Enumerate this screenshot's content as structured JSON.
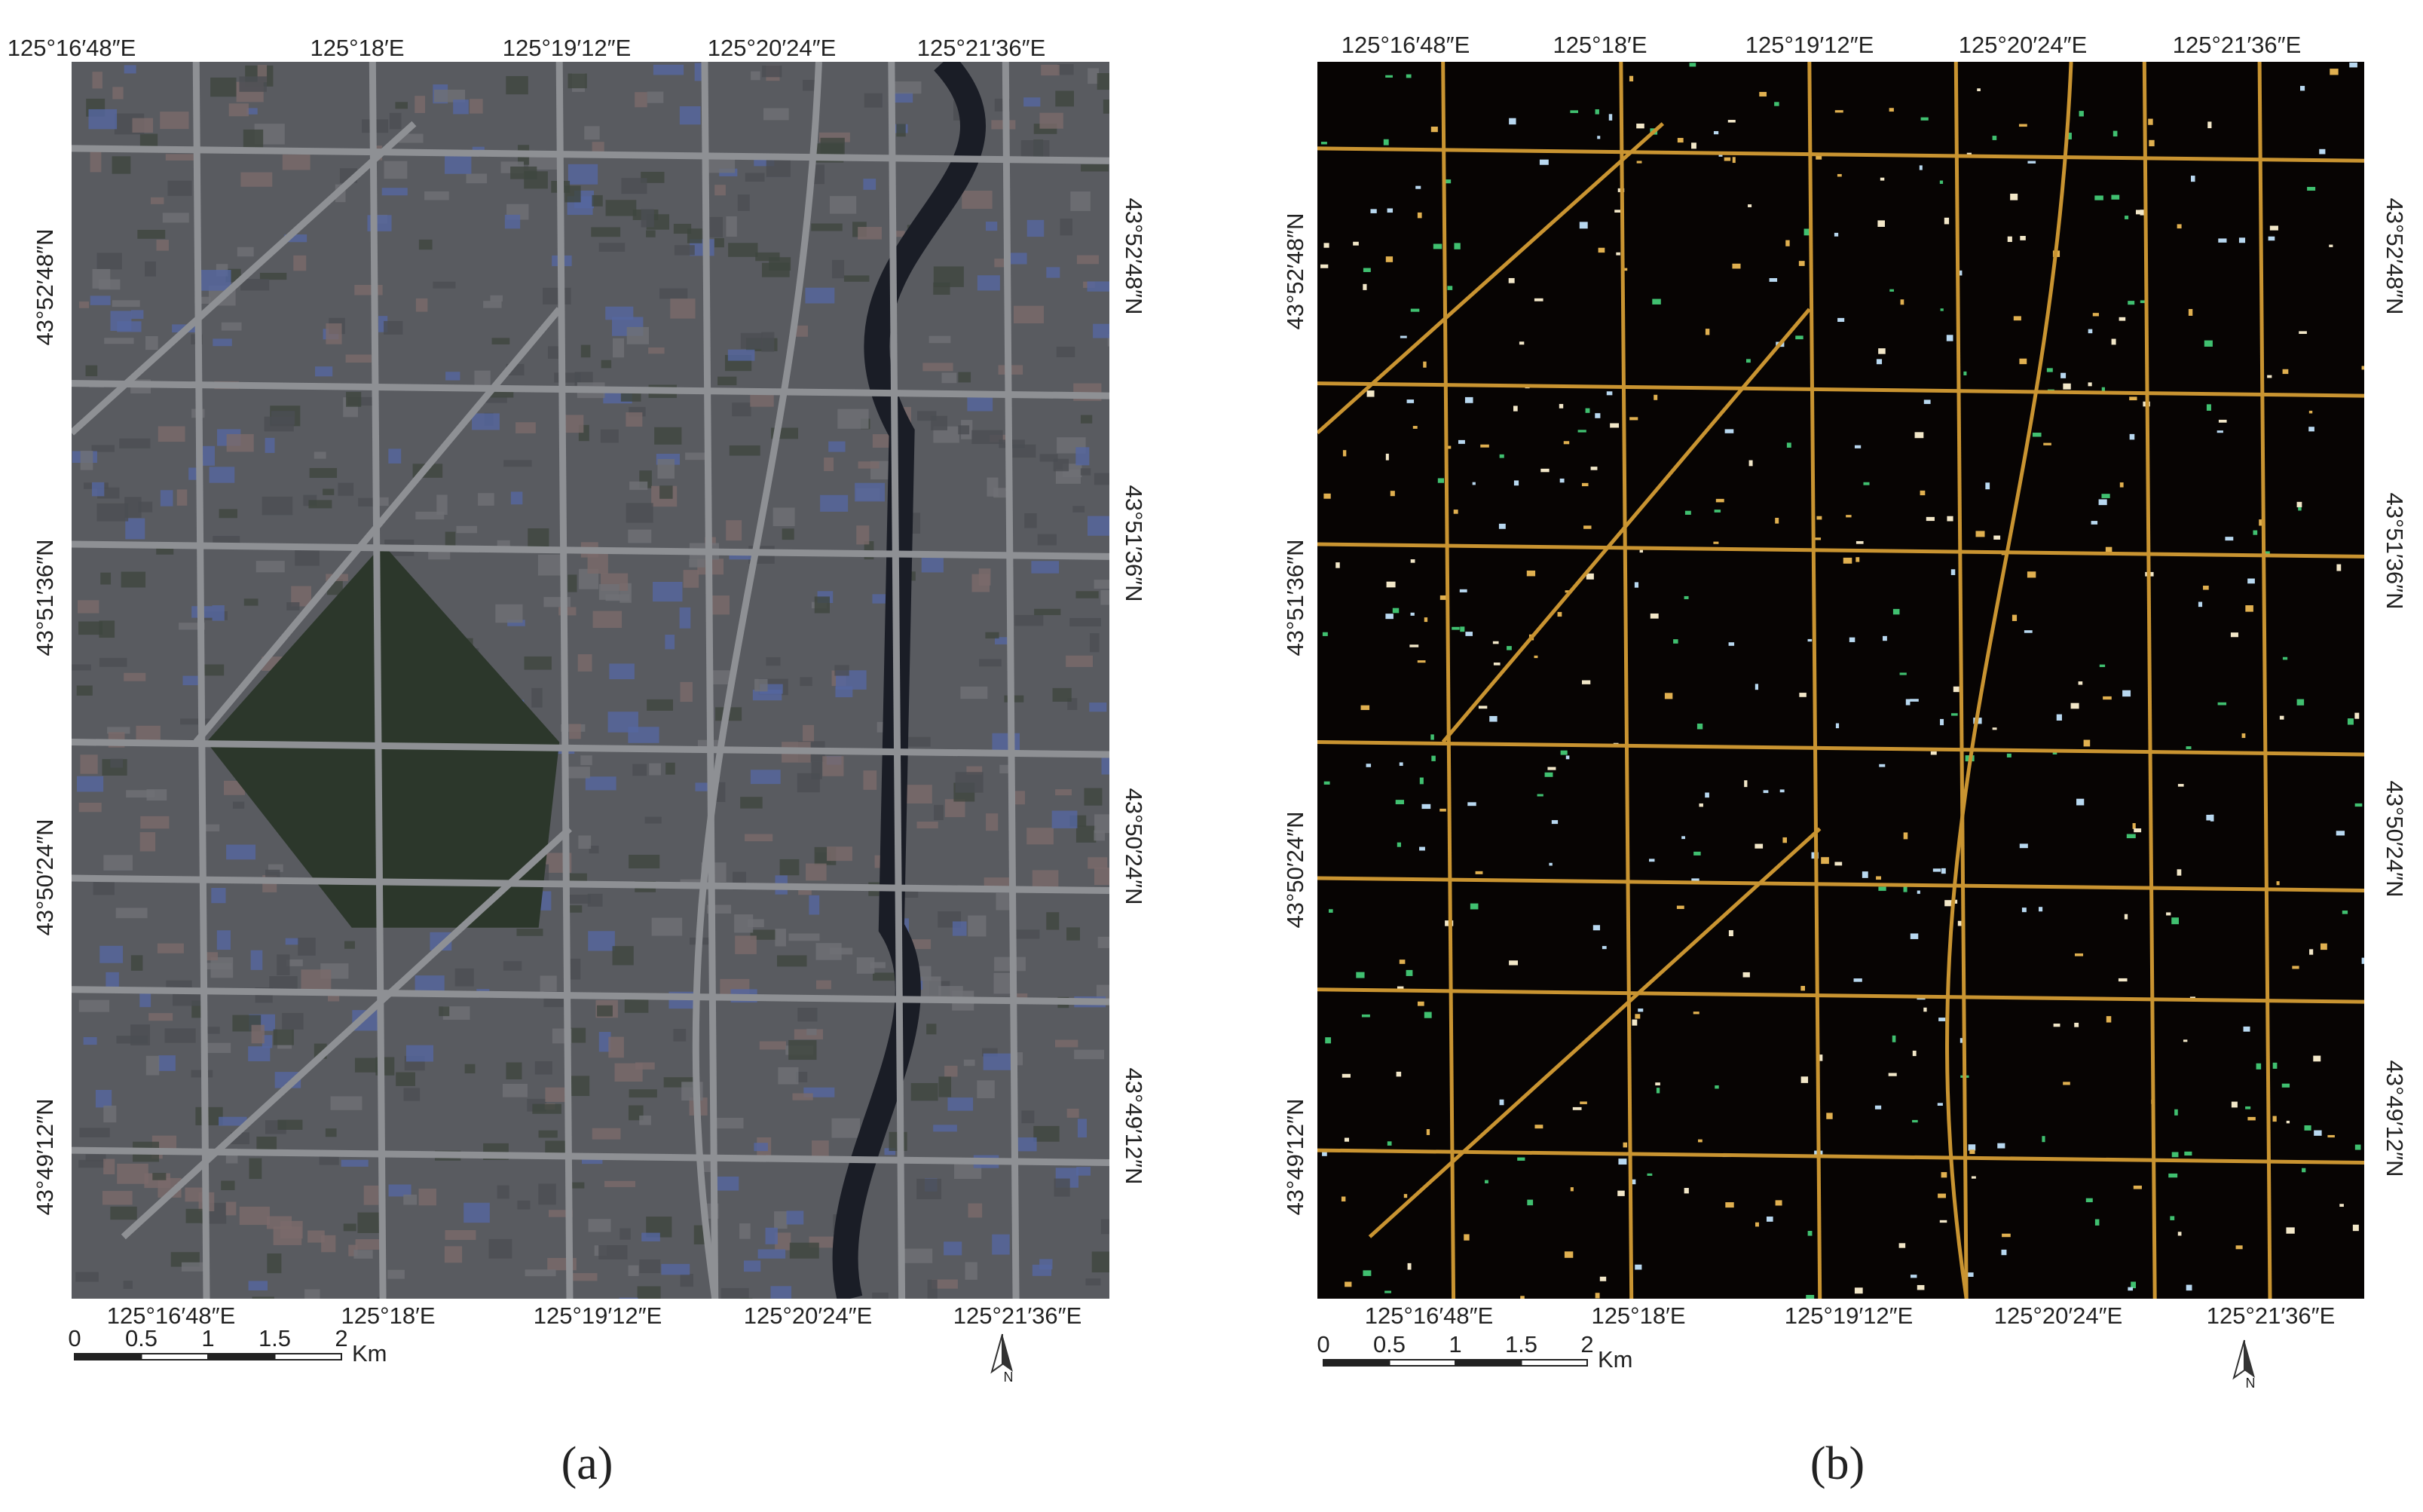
{
  "panels": [
    {
      "caption": "(a)",
      "top_labels": [
        "125°16′48″E",
        "125°18′E",
        "125°19′12″E",
        "125°20′24″E",
        "125°21′36″E"
      ],
      "bottom_labels": [
        "125°16′48″E",
        "125°18′E",
        "125°19′12″E",
        "125°20′24″E",
        "125°21′36″E"
      ],
      "left_labels": [
        "43°52′48″N",
        "43°51′36″N",
        "43°50′24″N",
        "43°49′12″N"
      ],
      "right_labels": [
        "43°52′48″N",
        "43°51′36″N",
        "43°50′24″N",
        "43°49′12″N"
      ],
      "scale_labels": [
        "0",
        "0.5",
        "1",
        "1.5",
        "2"
      ],
      "scale_unit": "Km",
      "north": "N"
    },
    {
      "caption": "(b)",
      "top_labels": [
        "125°16′48″E",
        "125°18′E",
        "125°19′12″E",
        "125°20′24″E",
        "125°21′36″E"
      ],
      "bottom_labels": [
        "125°16′48″E",
        "125°18′E",
        "125°19′12″E",
        "125°20′24″E",
        "125°21′36″E"
      ],
      "left_labels": [
        "43°52′48″N",
        "43°51′36″N",
        "43°50′24″N",
        "43°49′12″N"
      ],
      "right_labels": [
        "43°52′48″N",
        "43°51′36″N",
        "43°50′24″N",
        "43°49′12″N"
      ],
      "scale_labels": [
        "0",
        "0.5",
        "1",
        "1.5",
        "2"
      ],
      "scale_unit": "Km",
      "north": "N"
    }
  ]
}
